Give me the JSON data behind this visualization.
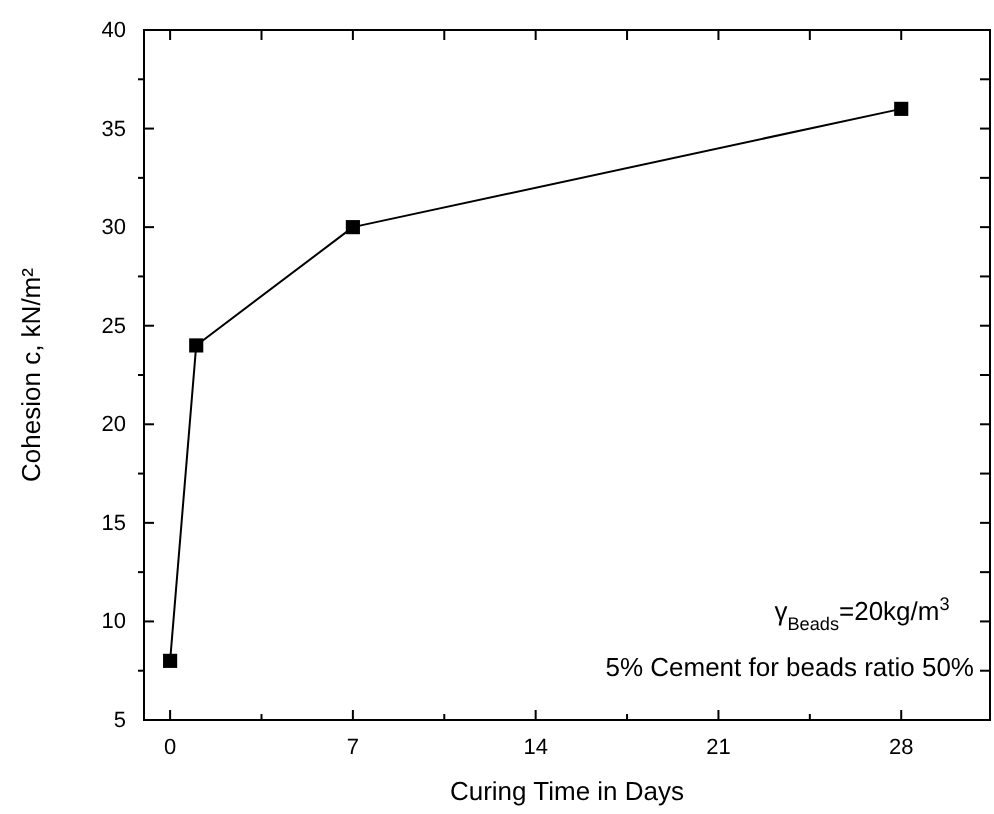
{
  "chart_data": {
    "type": "line",
    "xlabel": "Curing Time in Days",
    "ylabel": "Cohesion c, kN/m²",
    "x": [
      0,
      1,
      7,
      28
    ],
    "series": [
      {
        "color": "#000000",
        "values": [
          8,
          24,
          30,
          36
        ]
      }
    ],
    "xlim": [
      -1,
      31.4
    ],
    "ylim": [
      5,
      40
    ],
    "xticks": [
      0,
      {
        "value": 3.5,
        "label": null
      },
      7,
      {
        "value": 10.5,
        "label": null
      },
      14,
      {
        "value": 17.5,
        "label": null
      },
      21,
      {
        "value": 24.5,
        "label": null
      },
      28
    ],
    "yticks": [
      5,
      {
        "value": 7.5,
        "label": null
      },
      10,
      {
        "value": 12.5,
        "label": null
      },
      15,
      {
        "value": 17.5,
        "label": null
      },
      20,
      {
        "value": 22.5,
        "label": null
      },
      25,
      {
        "value": 27.5,
        "label": null
      },
      30,
      {
        "value": 32.5,
        "label": null
      },
      35,
      {
        "value": 37.5,
        "label": null
      },
      40
    ],
    "marker": "square",
    "line_style": "solid",
    "grid": false,
    "annotations": [
      "γ$_{Beads}$=20kg/m$^{3}$",
      "5% Cement for beads ratio 50%"
    ]
  }
}
